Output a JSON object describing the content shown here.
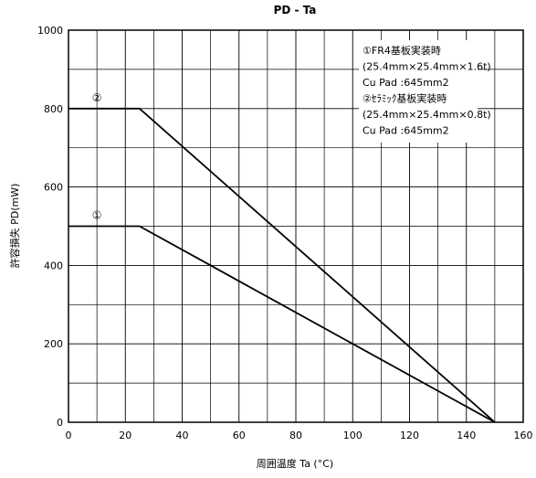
{
  "chart_data": {
    "type": "line",
    "title": "PD - Ta",
    "xlabel": "周囲温度 Ta (°C)",
    "ylabel": "許容損失 PD(mW)",
    "xlim": [
      0,
      160
    ],
    "ylim": [
      0,
      1000
    ],
    "x_ticks": [
      0,
      20,
      40,
      60,
      80,
      100,
      120,
      140,
      160
    ],
    "y_ticks": [
      0,
      200,
      400,
      600,
      800,
      1000
    ],
    "x_minor_step": 10,
    "y_minor_step": 100,
    "grid": true,
    "series": [
      {
        "name": "①",
        "x": [
          0,
          25,
          150
        ],
        "y": [
          500,
          500,
          0
        ]
      },
      {
        "name": "②",
        "x": [
          0,
          25,
          150
        ],
        "y": [
          800,
          800,
          0
        ]
      }
    ],
    "annotations": [
      "①FR4基板実装時",
      "(25.4mm×25.4mm×1.6t)",
      "Cu Pad :645mm2",
      "②ｾﾗﾐｯｸ基板実装時",
      "(25.4mm×25.4mm×0.8t)",
      "Cu Pad :645mm2"
    ]
  }
}
